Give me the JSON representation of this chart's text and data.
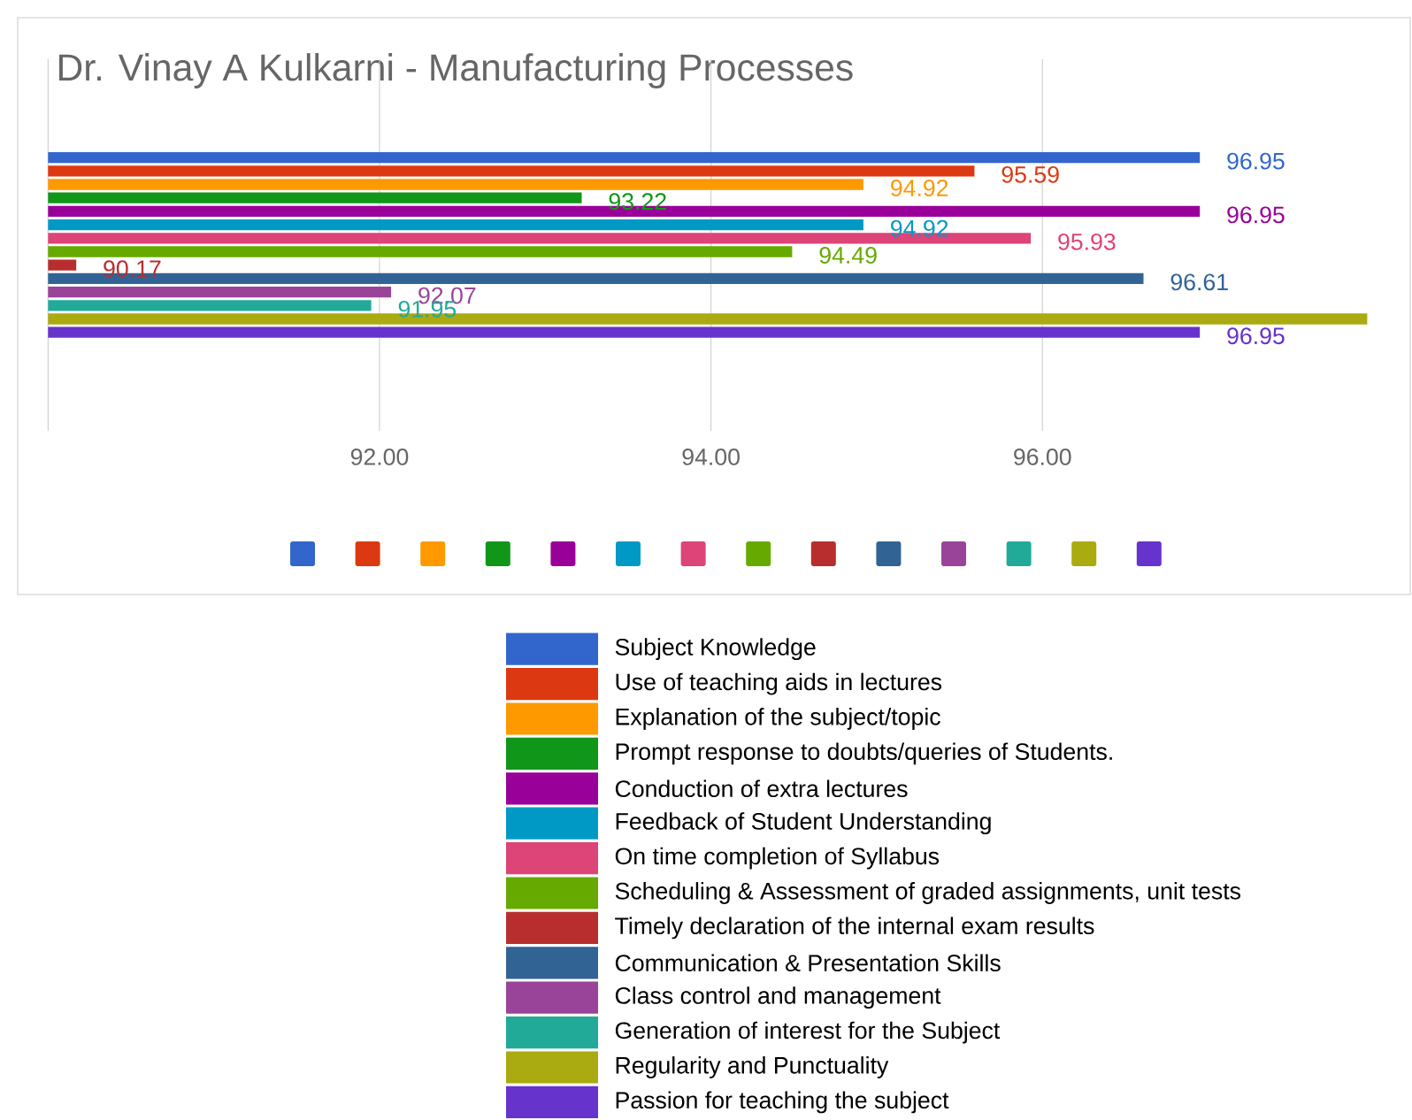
{
  "chart_data": {
    "type": "bar",
    "orientation": "horizontal",
    "title": "Dr. Vinay A Kulkarni - Manufacturing Processes",
    "categories": [
      null
    ],
    "series": [
      {
        "name": "Subject Knowledge",
        "color": "#3366cc",
        "values": [
          96.95
        ],
        "value_labels": [
          "96.95"
        ]
      },
      {
        "name": "Use of teaching aids in lectures",
        "color": "#dc3912",
        "values": [
          95.59
        ],
        "value_labels": [
          "95.59"
        ]
      },
      {
        "name": "Explanation of the subject/topic",
        "color": "#ff9900",
        "values": [
          94.92
        ],
        "value_labels": [
          "94.92"
        ]
      },
      {
        "name": "Prompt response to doubts/queries of Students.",
        "color": "#109618",
        "values": [
          93.22
        ],
        "value_labels": [
          "93.22"
        ]
      },
      {
        "name": "Conduction of extra lectures",
        "color": "#990099",
        "values": [
          96.95
        ],
        "value_labels": [
          "96.95"
        ]
      },
      {
        "name": "Feedback of Student Understanding",
        "color": "#0099c6",
        "values": [
          94.92
        ],
        "value_labels": [
          "94.92"
        ]
      },
      {
        "name": "On time completion of Syllabus",
        "color": "#dd4477",
        "values": [
          95.93
        ],
        "value_labels": [
          "95.93"
        ]
      },
      {
        "name": "Scheduling & Assessment of  graded assignments, unit tests",
        "color": "#66aa00",
        "values": [
          94.49
        ],
        "value_labels": [
          "94.49"
        ]
      },
      {
        "name": "Timely declaration of the internal exam results",
        "color": "#b82e2e",
        "values": [
          90.17
        ],
        "value_labels": [
          "90.17"
        ]
      },
      {
        "name": "Communication & Presentation Skills",
        "color": "#316395",
        "values": [
          96.61
        ],
        "value_labels": [
          "96.61"
        ]
      },
      {
        "name": "Class control and management",
        "color": "#994499",
        "values": [
          92.07
        ],
        "value_labels": [
          "92.07"
        ]
      },
      {
        "name": "Generation of interest for the Subject",
        "color": "#22aa99",
        "values": [
          91.95
        ],
        "value_labels": [
          "91.95"
        ]
      },
      {
        "name": "Regularity and Punctuality",
        "color": "#aaaa11",
        "values": [
          97.96
        ],
        "value_labels": [
          null
        ]
      },
      {
        "name": "Passion for teaching the subject",
        "color": "#6633cc",
        "values": [
          96.95
        ],
        "value_labels": [
          "96.95"
        ]
      }
    ],
    "xlim": [
      90,
      98.2
    ],
    "xticks": [
      {
        "value": 92,
        "label": "92.00"
      },
      {
        "value": 94,
        "label": "94.00"
      },
      {
        "value": 96,
        "label": "96.00"
      }
    ],
    "grid": "x",
    "legend": "bottom"
  }
}
